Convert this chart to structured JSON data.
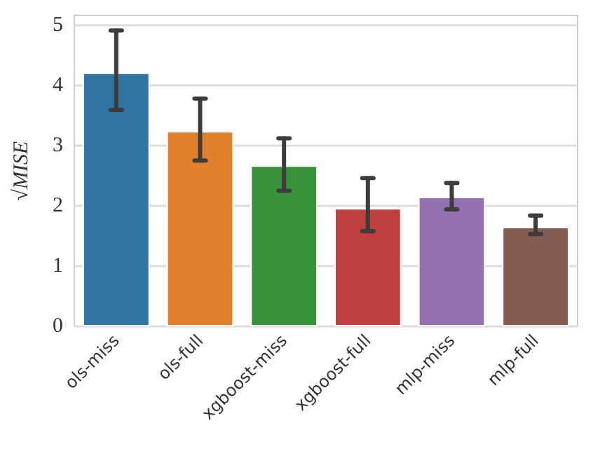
{
  "chart_data": {
    "type": "bar",
    "ylabel": "√MISE",
    "categories": [
      "ols-miss",
      "ols-full",
      "xgboost-miss",
      "xgboost-full",
      "mlp-miss",
      "mlp-full"
    ],
    "values": [
      4.21,
      3.24,
      2.67,
      1.96,
      2.15,
      1.65
    ],
    "colors": [
      "#3274a1",
      "#e1812c",
      "#3a923a",
      "#c03d3e",
      "#9372b2",
      "#845b53"
    ],
    "errors": [
      [
        3.59,
        4.91
      ],
      [
        2.75,
        3.78
      ],
      [
        2.25,
        3.12
      ],
      [
        1.58,
        2.46
      ],
      [
        1.94,
        2.38
      ],
      [
        1.53,
        1.84
      ]
    ],
    "ylim": [
      0,
      5.16
    ],
    "yticks": [
      0,
      1,
      2,
      3,
      4,
      5
    ],
    "grid": "y"
  }
}
